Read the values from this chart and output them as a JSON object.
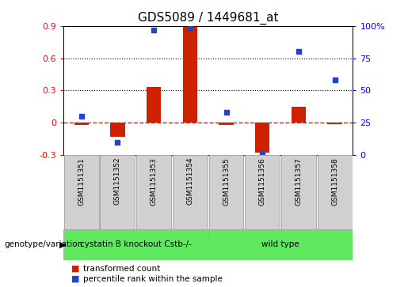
{
  "title": "GDS5089 / 1449681_at",
  "samples": [
    "GSM1151351",
    "GSM1151352",
    "GSM1151353",
    "GSM1151354",
    "GSM1151355",
    "GSM1151356",
    "GSM1151357",
    "GSM1151358"
  ],
  "bar_values": [
    -0.02,
    -0.13,
    0.33,
    0.9,
    -0.02,
    -0.28,
    0.15,
    -0.01
  ],
  "dot_percentiles": [
    30,
    10,
    97,
    98,
    33,
    1,
    80,
    58
  ],
  "ylim_left": [
    -0.3,
    0.9
  ],
  "ylim_right": [
    0,
    100
  ],
  "yticks_left": [
    -0.3,
    0.0,
    0.3,
    0.6,
    0.9
  ],
  "yticks_right": [
    0,
    25,
    50,
    75,
    100
  ],
  "group1_label": "cystatin B knockout Cstb-/-",
  "group2_label": "wild type",
  "group_color": "#5de85d",
  "sample_box_color": "#d0d0d0",
  "bar_color": "#cc2200",
  "dot_color": "#2244cc",
  "zero_line_color": "#cc2200",
  "bg_color": "#ffffff",
  "legend_bar_label": "transformed count",
  "legend_dot_label": "percentile rank within the sample",
  "genotype_label": "genotype/variation",
  "title_fontsize": 11
}
